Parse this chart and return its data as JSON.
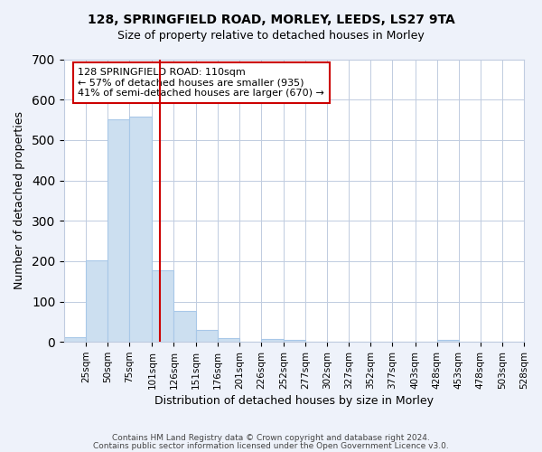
{
  "title1": "128, SPRINGFIELD ROAD, MORLEY, LEEDS, LS27 9TA",
  "title2": "Size of property relative to detached houses in Morley",
  "xlabel": "Distribution of detached houses by size in Morley",
  "ylabel": "Number of detached properties",
  "footer1": "Contains HM Land Registry data © Crown copyright and database right 2024.",
  "footer2": "Contains public sector information licensed under the Open Government Licence v3.0.",
  "annotation_line1": "128 SPRINGFIELD ROAD: 110sqm",
  "annotation_line2": "← 57% of detached houses are smaller (935)",
  "annotation_line3": "41% of semi-detached houses are larger (670) →",
  "property_size_sqm": 110,
  "bar_color": "#ccdff0",
  "bar_edge_color": "#a8c8e8",
  "vline_color": "#cc0000",
  "vline_x": 110,
  "bin_edges": [
    0,
    25,
    50,
    75,
    101,
    126,
    151,
    176,
    201,
    226,
    252,
    277,
    302,
    327,
    352,
    377,
    403,
    428,
    453,
    478,
    503,
    528
  ],
  "bin_labels": [
    "25sqm",
    "50sqm",
    "75sqm",
    "101sqm",
    "126sqm",
    "151sqm",
    "176sqm",
    "201sqm",
    "226sqm",
    "252sqm",
    "277sqm",
    "302sqm",
    "327sqm",
    "352sqm",
    "377sqm",
    "403sqm",
    "428sqm",
    "453sqm",
    "478sqm",
    "503sqm",
    "528sqm"
  ],
  "counts": [
    12,
    202,
    552,
    558,
    178,
    76,
    29,
    10,
    0,
    8,
    4,
    0,
    0,
    0,
    0,
    0,
    0,
    5,
    0,
    0,
    0
  ],
  "ylim": [
    0,
    700
  ],
  "yticks": [
    0,
    100,
    200,
    300,
    400,
    500,
    600,
    700
  ],
  "bg_color": "#eef2fa",
  "plot_bg_color": "#ffffff",
  "grid_color": "#c0cce0"
}
